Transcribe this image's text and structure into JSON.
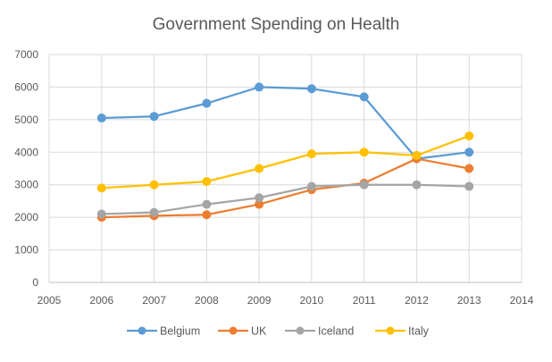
{
  "chart_data": {
    "type": "line",
    "title": "Government Spending on Health",
    "xlabel": "",
    "ylabel": "",
    "x": [
      2006,
      2007,
      2008,
      2009,
      2010,
      2011,
      2012,
      2013
    ],
    "xlim": [
      2005,
      2014
    ],
    "ylim": [
      0,
      7000
    ],
    "xticks": [
      "2005",
      "2006",
      "2007",
      "2008",
      "2009",
      "2010",
      "2011",
      "2012",
      "2013",
      "2014"
    ],
    "yticks": [
      "0",
      "1000",
      "2000",
      "3000",
      "4000",
      "5000",
      "6000",
      "7000"
    ],
    "grid": true,
    "legend_position": "bottom",
    "series": [
      {
        "name": "Belgium",
        "color": "#5B9BD5",
        "values": [
          5050,
          5100,
          5500,
          6000,
          5950,
          5700,
          3800,
          4000
        ]
      },
      {
        "name": "UK",
        "color": "#ED7D31",
        "values": [
          2000,
          2050,
          2080,
          2400,
          2850,
          3050,
          3800,
          3500
        ]
      },
      {
        "name": "Iceland",
        "color": "#A5A5A5",
        "values": [
          2100,
          2150,
          2400,
          2600,
          2950,
          3000,
          3000,
          2950
        ]
      },
      {
        "name": "Italy",
        "color": "#FFC000",
        "values": [
          2900,
          3000,
          3100,
          3500,
          3950,
          4000,
          3900,
          4500
        ]
      }
    ]
  }
}
